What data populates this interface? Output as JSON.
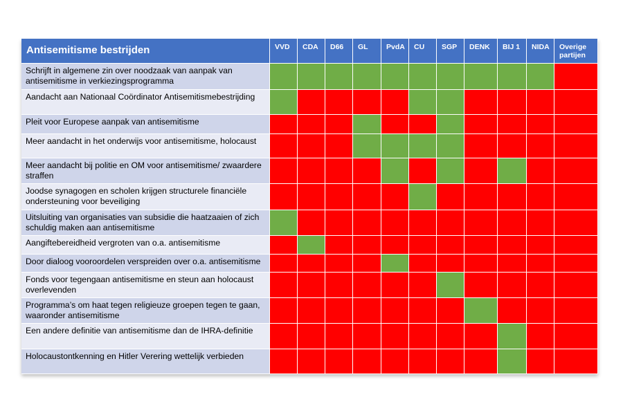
{
  "table": {
    "title": "Antisemitisme bestrijden",
    "parties": [
      "VVD",
      "CDA",
      "D66",
      "GL",
      "PvdA",
      "CU",
      "SGP",
      "DENK",
      "BIJ 1",
      "NIDA",
      "Overige partijen"
    ],
    "rows": [
      {
        "label": "Schrijft in algemene zin over noodzaak van aanpak van antisemitisme in verkiezingsprogramma",
        "values": [
          1,
          1,
          1,
          1,
          1,
          1,
          1,
          1,
          1,
          1,
          0
        ]
      },
      {
        "label": "Aandacht aan  Nationaal Coördinator Antisemitismebestrijding",
        "values": [
          1,
          0,
          0,
          0,
          0,
          1,
          1,
          0,
          0,
          0,
          0
        ]
      },
      {
        "label": "Pleit voor Europese aanpak van antisemitisme",
        "values": [
          0,
          0,
          0,
          1,
          0,
          0,
          1,
          0,
          0,
          0,
          0
        ]
      },
      {
        "label": "Meer aandacht in het onderwijs voor antisemitisme, holocaust",
        "values": [
          0,
          0,
          0,
          1,
          1,
          1,
          1,
          0,
          0,
          0,
          0
        ]
      },
      {
        "label": "Meer aandacht bij politie en OM voor antisemitisme/ zwaardere straffen",
        "values": [
          0,
          0,
          0,
          0,
          1,
          0,
          1,
          0,
          1,
          0,
          0
        ]
      },
      {
        "label": "Joodse synagogen en scholen krijgen structurele financiële ondersteuning voor beveiliging",
        "values": [
          0,
          0,
          0,
          0,
          0,
          1,
          0,
          0,
          0,
          0,
          0
        ]
      },
      {
        "label": "Uitsluiting van organisaties van subsidie die haatzaaien of zich schuldig maken aan antisemitisme",
        "values": [
          1,
          0,
          0,
          0,
          0,
          0,
          0,
          0,
          0,
          0,
          0
        ]
      },
      {
        "label": "Aangiftebereidheid vergroten van o.a. antisemitisme",
        "values": [
          0,
          1,
          0,
          0,
          0,
          0,
          0,
          0,
          0,
          0,
          0
        ]
      },
      {
        "label": "Door dialoog vooroordelen verspreiden over o.a. antisemitisme",
        "values": [
          0,
          0,
          0,
          0,
          1,
          0,
          0,
          0,
          0,
          0,
          0
        ]
      },
      {
        "label": "Fonds voor tegengaan antisemitisme en steun aan holocaust overlevenden",
        "values": [
          0,
          0,
          0,
          0,
          0,
          0,
          1,
          0,
          0,
          0,
          0
        ]
      },
      {
        "label": "Programma’s om haat tegen religieuze groepen tegen te gaan, waaronder antisemitisme",
        "values": [
          0,
          0,
          0,
          0,
          0,
          0,
          0,
          1,
          0,
          0,
          0
        ]
      },
      {
        "label": "Een andere definitie van antisemitisme dan de IHRA-definitie",
        "values": [
          0,
          0,
          0,
          0,
          0,
          0,
          0,
          0,
          1,
          0,
          0
        ]
      },
      {
        "label": "Holocaustontkenning en Hitler Verering wettelijk verbieden",
        "values": [
          0,
          0,
          0,
          0,
          0,
          0,
          0,
          0,
          1,
          0,
          0
        ]
      }
    ]
  },
  "chart_data": {
    "type": "heatmap",
    "title": "Antisemitisme bestrijden",
    "x": [
      "VVD",
      "CDA",
      "D66",
      "GL",
      "PvdA",
      "CU",
      "SGP",
      "DENK",
      "BIJ 1",
      "NIDA",
      "Overige partijen"
    ],
    "y": [
      "Schrijft in algemene zin over noodzaak van aanpak van antisemitisme in verkiezingsprogramma",
      "Aandacht aan  Nationaal Coördinator Antisemitismebestrijding",
      "Pleit voor Europese aanpak van antisemitisme",
      "Meer aandacht in het onderwijs voor antisemitisme, holocaust",
      "Meer aandacht bij politie en OM voor antisemitisme/ zwaardere straffen",
      "Joodse synagogen en scholen krijgen structurele financiële ondersteuning voor beveiliging",
      "Uitsluiting van organisaties van subsidie die haatzaaien of zich schuldig maken aan antisemitisme",
      "Aangiftebereidheid vergroten van o.a. antisemitisme",
      "Door dialoog vooroordelen verspreiden over o.a. antisemitisme",
      "Fonds voor tegengaan antisemitisme en steun aan holocaust overlevenden",
      "Programma’s om haat tegen religieuze groepen tegen te gaan, waaronder antisemitisme",
      "Een andere definitie van antisemitisme dan de IHRA-definitie",
      "Holocaustontkenning en Hitler Verering wettelijk verbieden"
    ],
    "values": [
      [
        1,
        1,
        1,
        1,
        1,
        1,
        1,
        1,
        1,
        1,
        0
      ],
      [
        1,
        0,
        0,
        0,
        0,
        1,
        1,
        0,
        0,
        0,
        0
      ],
      [
        0,
        0,
        0,
        1,
        0,
        0,
        1,
        0,
        0,
        0,
        0
      ],
      [
        0,
        0,
        0,
        1,
        1,
        1,
        1,
        0,
        0,
        0,
        0
      ],
      [
        0,
        0,
        0,
        0,
        1,
        0,
        1,
        0,
        1,
        0,
        0
      ],
      [
        0,
        0,
        0,
        0,
        0,
        1,
        0,
        0,
        0,
        0,
        0
      ],
      [
        1,
        0,
        0,
        0,
        0,
        0,
        0,
        0,
        0,
        0,
        0
      ],
      [
        0,
        1,
        0,
        0,
        0,
        0,
        0,
        0,
        0,
        0,
        0
      ],
      [
        0,
        0,
        0,
        0,
        1,
        0,
        0,
        0,
        0,
        0,
        0
      ],
      [
        0,
        0,
        0,
        0,
        0,
        0,
        1,
        0,
        0,
        0,
        0
      ],
      [
        0,
        0,
        0,
        0,
        0,
        0,
        0,
        1,
        0,
        0,
        0
      ],
      [
        0,
        0,
        0,
        0,
        0,
        0,
        0,
        0,
        1,
        0,
        0
      ],
      [
        0,
        0,
        0,
        0,
        0,
        0,
        0,
        0,
        1,
        0,
        0
      ]
    ],
    "colors": {
      "1": "#70ad47",
      "0": "#ff0000",
      "header": "#4472c4"
    }
  }
}
